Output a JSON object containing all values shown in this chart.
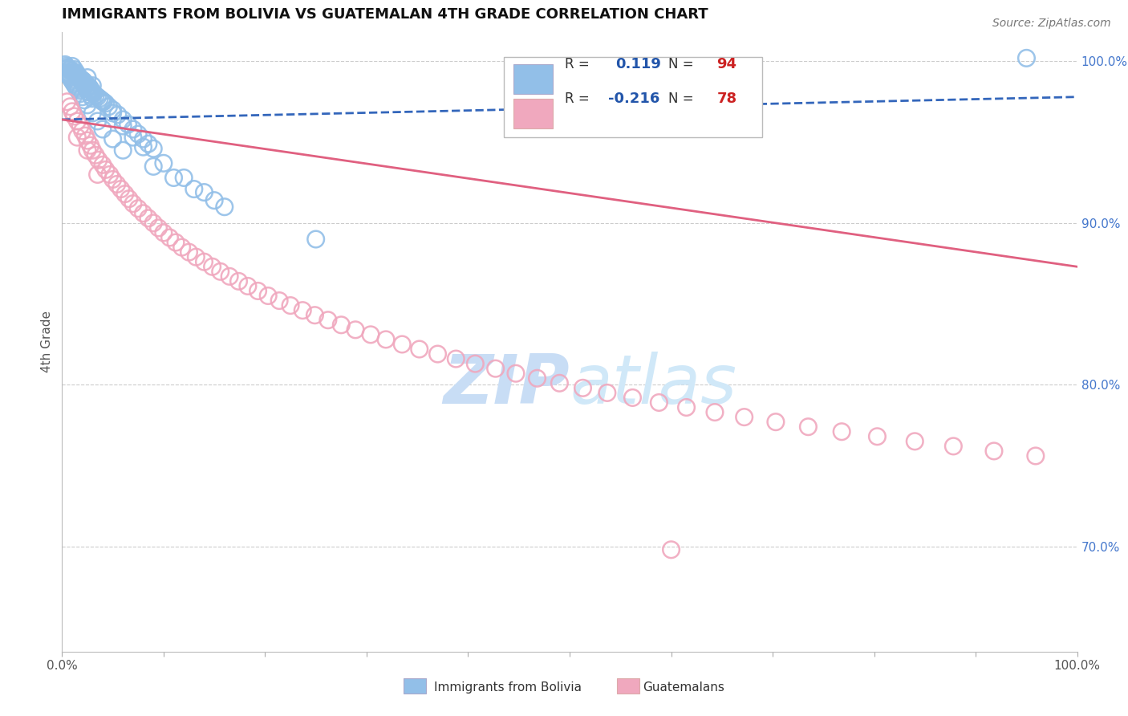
{
  "title": "IMMIGRANTS FROM BOLIVIA VS GUATEMALAN 4TH GRADE CORRELATION CHART",
  "source_text": "Source: ZipAtlas.com",
  "xlabel_left": "Immigrants from Bolivia",
  "xlabel_right": "Guatemalans",
  "ylabel": "4th Grade",
  "r_blue": 0.119,
  "n_blue": 94,
  "r_pink": -0.216,
  "n_pink": 78,
  "xlim": [
    0.0,
    1.0
  ],
  "ylim": [
    0.635,
    1.018
  ],
  "yticks": [
    0.7,
    0.8,
    0.9,
    1.0
  ],
  "ytick_labels": [
    "70.0%",
    "80.0%",
    "90.0%",
    "100.0%"
  ],
  "blue_color": "#92bfe8",
  "pink_color": "#f0a8be",
  "blue_line_color": "#3366bb",
  "pink_line_color": "#e06080",
  "watermark_color": "#c8ddf5",
  "background_color": "#ffffff",
  "grid_color": "#cccccc",
  "title_color": "#111111",
  "axis_label_color": "#555555",
  "tick_color_right": "#4477cc",
  "legend_r_color": "#2255aa",
  "legend_n_color": "#cc2222",
  "blue_trend": [
    0.0,
    1.0,
    0.964,
    0.978
  ],
  "pink_trend": [
    0.0,
    1.0,
    0.964,
    0.873
  ],
  "blue_scatter_x": [
    0.003,
    0.004,
    0.005,
    0.006,
    0.007,
    0.008,
    0.009,
    0.01,
    0.011,
    0.012,
    0.013,
    0.014,
    0.015,
    0.016,
    0.017,
    0.018,
    0.019,
    0.02,
    0.021,
    0.022,
    0.023,
    0.024,
    0.025,
    0.026,
    0.027,
    0.028,
    0.029,
    0.03,
    0.031,
    0.033,
    0.035,
    0.037,
    0.039,
    0.041,
    0.043,
    0.046,
    0.05,
    0.055,
    0.06,
    0.065,
    0.07,
    0.075,
    0.08,
    0.085,
    0.09,
    0.01,
    0.012,
    0.014,
    0.016,
    0.018,
    0.02,
    0.022,
    0.024,
    0.026,
    0.028,
    0.03,
    0.005,
    0.006,
    0.007,
    0.008,
    0.009,
    0.01,
    0.011,
    0.012,
    0.013,
    0.014,
    0.015,
    0.016,
    0.018,
    0.02,
    0.022,
    0.025,
    0.03,
    0.035,
    0.04,
    0.05,
    0.06,
    0.09,
    0.11,
    0.13,
    0.15,
    0.05,
    0.025,
    0.03,
    0.04,
    0.06,
    0.07,
    0.08,
    0.1,
    0.12,
    0.14,
    0.16,
    0.25,
    0.95
  ],
  "blue_scatter_y": [
    0.998,
    0.997,
    0.996,
    0.996,
    0.995,
    0.995,
    0.994,
    0.994,
    0.993,
    0.993,
    0.992,
    0.991,
    0.991,
    0.99,
    0.99,
    0.989,
    0.989,
    0.988,
    0.988,
    0.987,
    0.986,
    0.986,
    0.985,
    0.984,
    0.984,
    0.983,
    0.982,
    0.981,
    0.98,
    0.979,
    0.978,
    0.977,
    0.976,
    0.975,
    0.974,
    0.972,
    0.97,
    0.967,
    0.964,
    0.961,
    0.958,
    0.955,
    0.952,
    0.949,
    0.946,
    0.997,
    0.995,
    0.993,
    0.991,
    0.989,
    0.987,
    0.985,
    0.983,
    0.981,
    0.979,
    0.977,
    0.993,
    0.992,
    0.991,
    0.99,
    0.989,
    0.988,
    0.987,
    0.986,
    0.985,
    0.984,
    0.983,
    0.982,
    0.98,
    0.978,
    0.976,
    0.973,
    0.968,
    0.963,
    0.958,
    0.952,
    0.945,
    0.935,
    0.928,
    0.921,
    0.914,
    0.968,
    0.99,
    0.985,
    0.975,
    0.96,
    0.953,
    0.947,
    0.937,
    0.928,
    0.919,
    0.91,
    0.89,
    1.002
  ],
  "pink_scatter_x": [
    0.005,
    0.008,
    0.01,
    0.012,
    0.015,
    0.018,
    0.02,
    0.023,
    0.025,
    0.028,
    0.03,
    0.033,
    0.036,
    0.04,
    0.043,
    0.047,
    0.05,
    0.054,
    0.058,
    0.062,
    0.066,
    0.07,
    0.075,
    0.08,
    0.085,
    0.09,
    0.095,
    0.1,
    0.106,
    0.112,
    0.118,
    0.125,
    0.132,
    0.14,
    0.148,
    0.156,
    0.165,
    0.174,
    0.183,
    0.193,
    0.203,
    0.214,
    0.225,
    0.237,
    0.249,
    0.262,
    0.275,
    0.289,
    0.304,
    0.319,
    0.335,
    0.352,
    0.37,
    0.388,
    0.407,
    0.427,
    0.447,
    0.468,
    0.49,
    0.513,
    0.537,
    0.562,
    0.588,
    0.615,
    0.643,
    0.672,
    0.703,
    0.735,
    0.768,
    0.803,
    0.84,
    0.878,
    0.918,
    0.959,
    0.015,
    0.025,
    0.035,
    0.6
  ],
  "pink_scatter_y": [
    0.975,
    0.972,
    0.969,
    0.966,
    0.963,
    0.96,
    0.957,
    0.954,
    0.951,
    0.948,
    0.945,
    0.942,
    0.939,
    0.936,
    0.933,
    0.93,
    0.927,
    0.924,
    0.921,
    0.918,
    0.915,
    0.912,
    0.909,
    0.906,
    0.903,
    0.9,
    0.897,
    0.894,
    0.891,
    0.888,
    0.885,
    0.882,
    0.879,
    0.876,
    0.873,
    0.87,
    0.867,
    0.864,
    0.861,
    0.858,
    0.855,
    0.852,
    0.849,
    0.846,
    0.843,
    0.84,
    0.837,
    0.834,
    0.831,
    0.828,
    0.825,
    0.822,
    0.819,
    0.816,
    0.813,
    0.81,
    0.807,
    0.804,
    0.801,
    0.798,
    0.795,
    0.792,
    0.789,
    0.786,
    0.783,
    0.78,
    0.777,
    0.774,
    0.771,
    0.768,
    0.765,
    0.762,
    0.759,
    0.756,
    0.953,
    0.945,
    0.93,
    0.698
  ]
}
